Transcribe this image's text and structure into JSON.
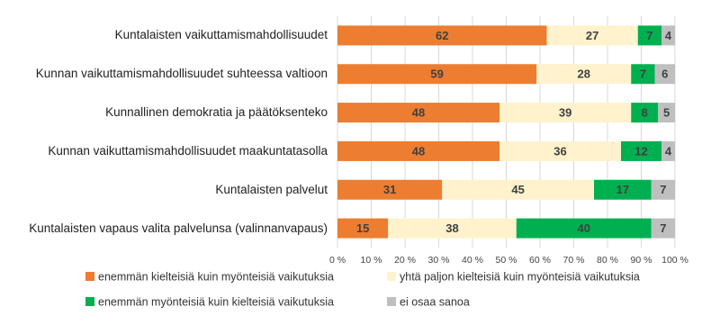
{
  "chart_data": {
    "type": "stacked-bar-horizontal",
    "categories": [
      "Kuntalaisten vaikuttamismahdollisuudet",
      "Kunnan vaikuttamismahdollisuudet suhteessa valtioon",
      "Kunnallinen demokratia ja päätöksenteko",
      "Kunnan vaikuttamismahdollisuudet maakuntatasolla",
      "Kuntalaisten palvelut",
      "Kuntalaisten vapaus valita palvelunsa (valinnanvapaus)"
    ],
    "series": [
      {
        "name": "enemmän kielteisiä kuin myönteisiä vaikutuksia",
        "color": "#ED7D31",
        "values": [
          62,
          59,
          48,
          48,
          31,
          15
        ]
      },
      {
        "name": "yhtä paljon kielteisiä kuin myönteisiä vaikutuksia",
        "color": "#FFF2CC",
        "values": [
          27,
          28,
          39,
          36,
          45,
          38
        ]
      },
      {
        "name": "enemmän myönteisiä kuin kielteisiä vaikutuksia",
        "color": "#00B050",
        "values": [
          7,
          7,
          8,
          12,
          17,
          40
        ]
      },
      {
        "name": "ei osaa sanoa",
        "color": "#BFBFBF",
        "values": [
          4,
          6,
          5,
          4,
          7,
          7
        ]
      }
    ],
    "xlim": [
      0,
      100
    ],
    "xticks": [
      {
        "value": 0,
        "label": "0 %"
      },
      {
        "value": 10,
        "label": "10 %"
      },
      {
        "value": 20,
        "label": "20 %"
      },
      {
        "value": 30,
        "label": "30 %"
      },
      {
        "value": 40,
        "label": "40 %"
      },
      {
        "value": 50,
        "label": "50 %"
      },
      {
        "value": 60,
        "label": "60 %"
      },
      {
        "value": 70,
        "label": "70 %"
      },
      {
        "value": 80,
        "label": "80 %"
      },
      {
        "value": 90,
        "label": "90 %"
      },
      {
        "value": 100,
        "label": "100 %"
      }
    ],
    "grid": true
  }
}
